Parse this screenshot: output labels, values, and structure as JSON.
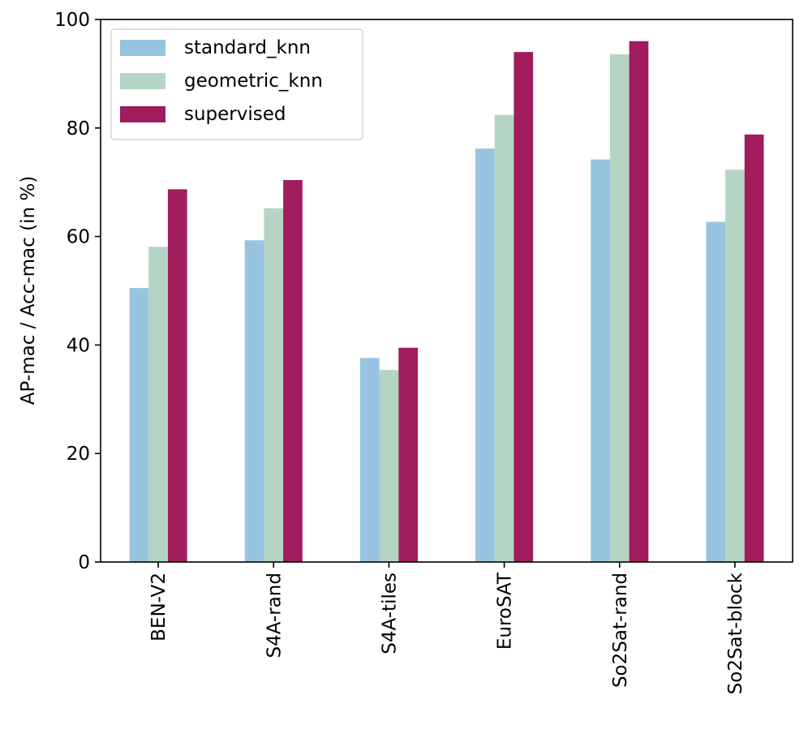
{
  "chart_data": {
    "type": "bar",
    "title": "",
    "xlabel": "",
    "ylabel": "AP-mac / Acc-mac (in %)",
    "ylim": [
      0,
      100
    ],
    "yticks": [
      0,
      20,
      40,
      60,
      80,
      100
    ],
    "grid": false,
    "legend_position": "top-left",
    "categories": [
      "BEN-V2",
      "S4A-rand",
      "S4A-tiles",
      "EuroSAT",
      "So2Sat-rand",
      "So2Sat-block"
    ],
    "series": [
      {
        "name": "standard_knn",
        "color": "#97c4e1",
        "values": [
          50.5,
          59.3,
          37.6,
          76.2,
          74.2,
          62.7
        ]
      },
      {
        "name": "geometric_knn",
        "color": "#b4d5c3",
        "values": [
          58.1,
          65.2,
          35.4,
          82.4,
          93.6,
          72.3
        ]
      },
      {
        "name": "supervised",
        "color": "#a01c5c",
        "values": [
          68.7,
          70.4,
          39.5,
          94.0,
          96.0,
          78.8
        ]
      }
    ]
  }
}
